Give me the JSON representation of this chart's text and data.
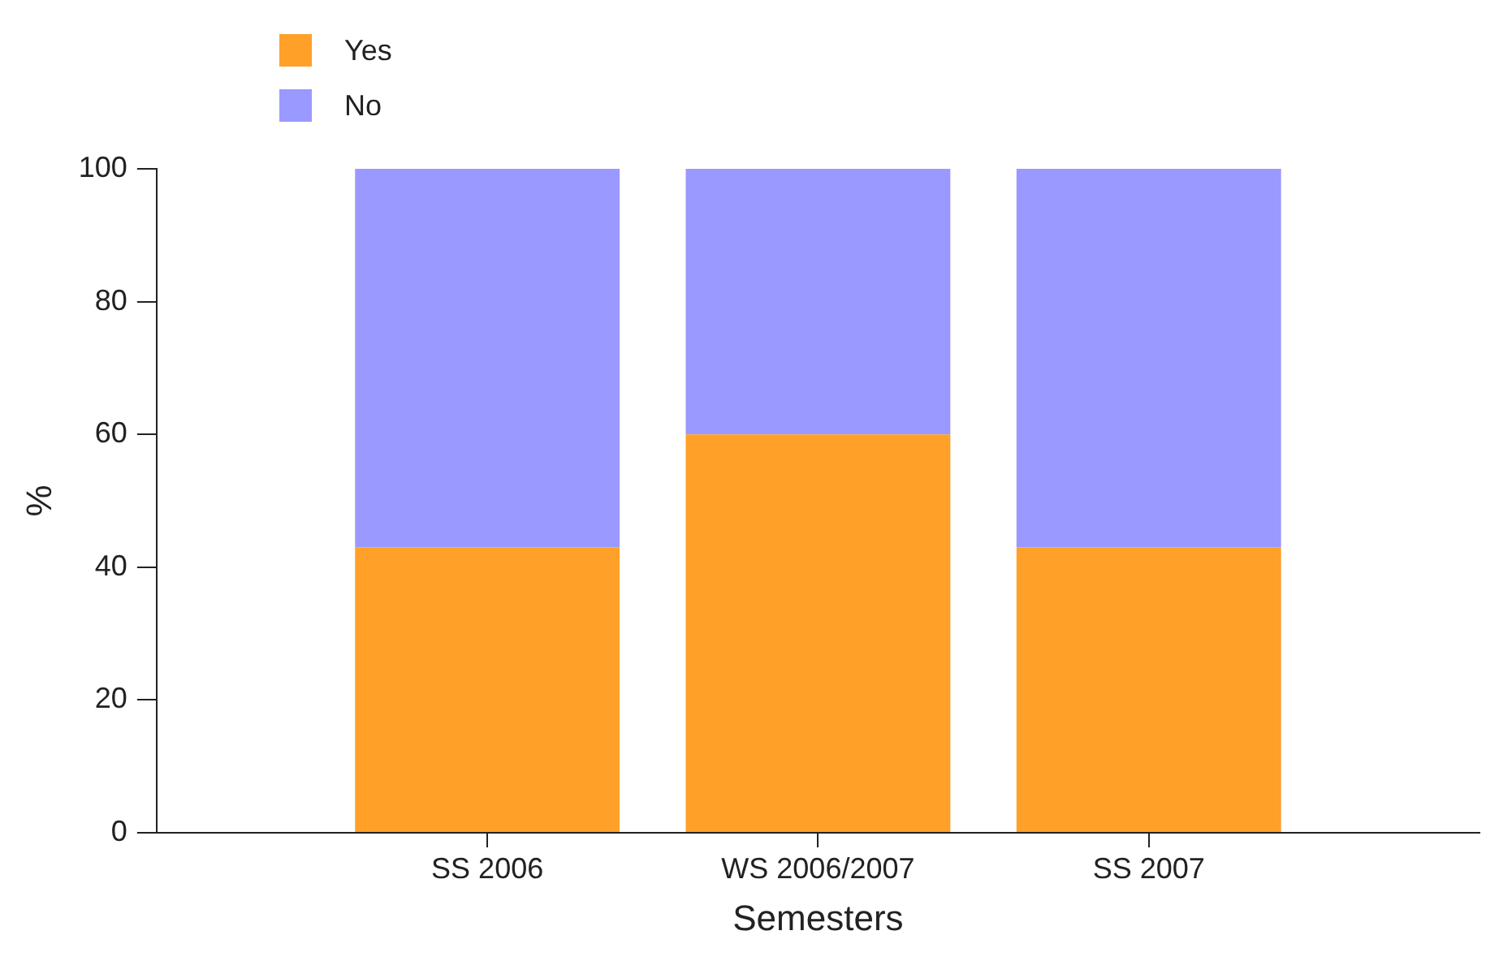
{
  "chart_data": {
    "type": "bar",
    "stacked": true,
    "categories": [
      "SS 2006",
      "WS 2006/2007",
      "SS 2007"
    ],
    "xlabel": "Semesters",
    "ylabel": "%",
    "series": [
      {
        "name": "Yes",
        "color": "#ffa028",
        "values": [
          43,
          60,
          43
        ]
      },
      {
        "name": "No",
        "color": "#9999ff",
        "values": [
          57,
          40,
          57
        ]
      }
    ],
    "ylim": [
      0,
      100
    ],
    "yticks": [
      0,
      20,
      40,
      60,
      80,
      100
    ],
    "grid": false,
    "legend": "top left"
  }
}
